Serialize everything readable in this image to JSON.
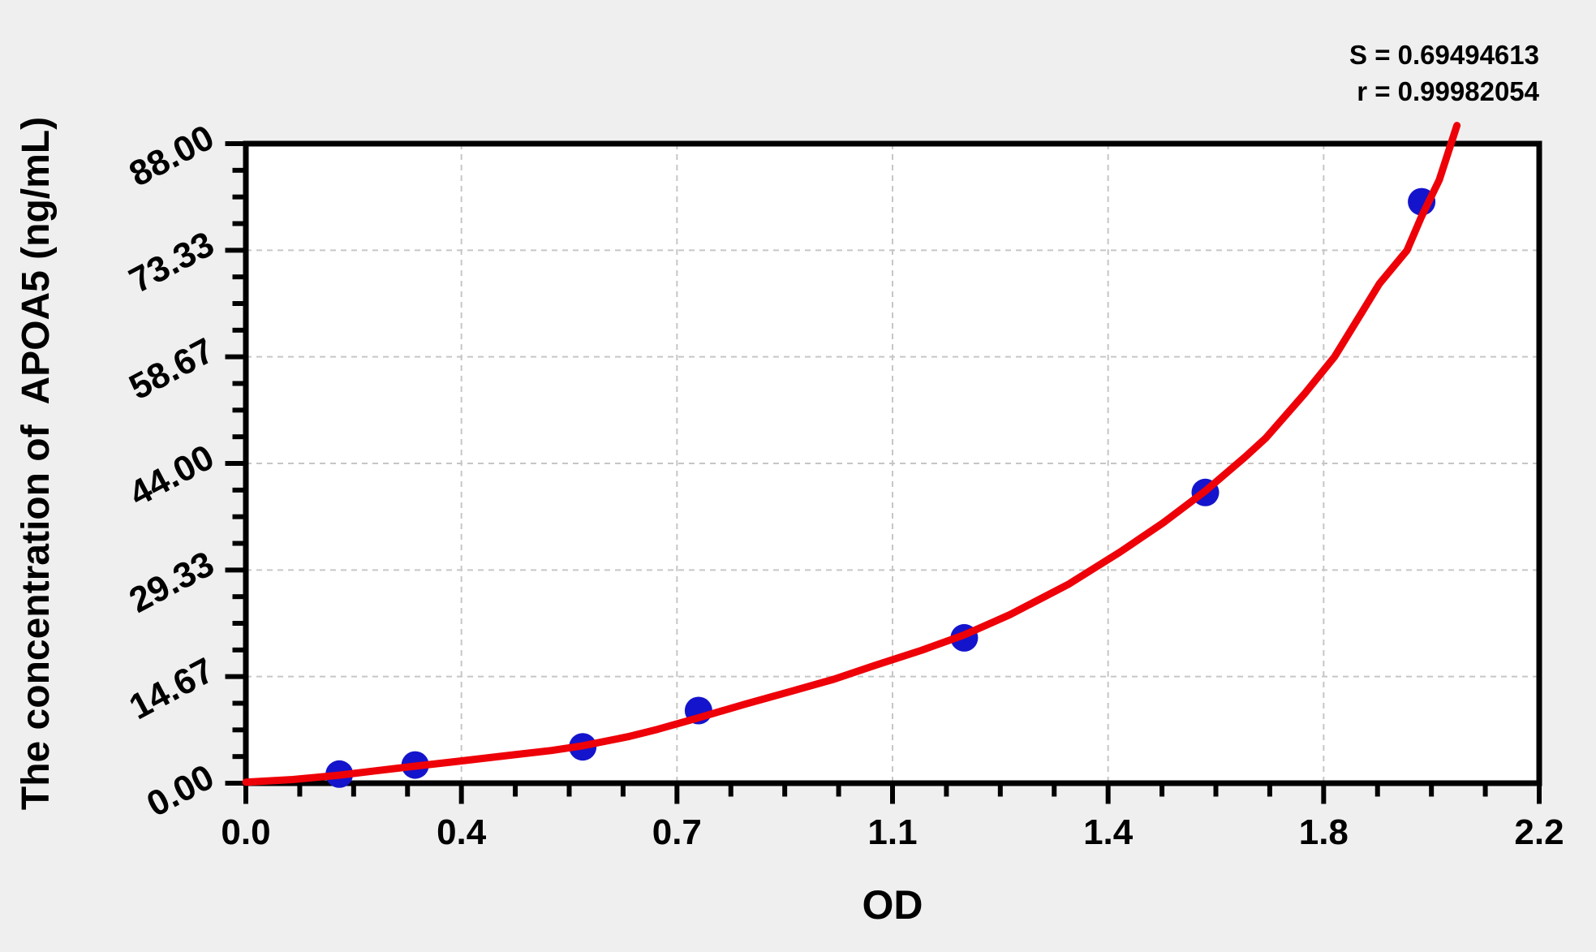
{
  "page": {
    "background": "#efefef",
    "plot_background": "#ffffff"
  },
  "chart_data": {
    "type": "scatter",
    "title": "",
    "xlabel": "OD",
    "ylabel": "The concentration of  APOA5 (ng/mL)",
    "xlim": [
      0.0,
      2.2
    ],
    "ylim": [
      0.0,
      88.0
    ],
    "x_ticks": [
      {
        "value": 0.0,
        "label": "0.0"
      },
      {
        "value": 0.36667,
        "label": "0.4"
      },
      {
        "value": 0.73333,
        "label": "0.7"
      },
      {
        "value": 1.1,
        "label": "1.1"
      },
      {
        "value": 1.46667,
        "label": "1.4"
      },
      {
        "value": 1.83333,
        "label": "1.8"
      },
      {
        "value": 2.2,
        "label": "2.2"
      }
    ],
    "y_ticks": [
      {
        "value": 0.0,
        "label": "0.00"
      },
      {
        "value": 14.6667,
        "label": "14.67"
      },
      {
        "value": 29.3333,
        "label": "29.33"
      },
      {
        "value": 44.0,
        "label": "44.00"
      },
      {
        "value": 58.6667,
        "label": "58.67"
      },
      {
        "value": 73.3333,
        "label": "73.33"
      },
      {
        "value": 88.0,
        "label": "88.00"
      }
    ],
    "minor_ticks_per_interval": 3,
    "grid": {
      "show": true,
      "style": "dashed",
      "color": "#c6c6c6",
      "at": "major-ticks"
    },
    "legend": "none",
    "stats": {
      "S": "0.69494613",
      "r": "0.99982054",
      "s_label": "S = 0.69494613",
      "r_label": "r = 0.99982054"
    },
    "series": [
      {
        "name": "standard-points",
        "type": "scatter",
        "color": "#1414cc",
        "marker_radius": 17,
        "points": [
          {
            "od": 0.159,
            "concentration": 1.25
          },
          {
            "od": 0.288,
            "concentration": 2.5
          },
          {
            "od": 0.573,
            "concentration": 5.0
          },
          {
            "od": 0.77,
            "concentration": 10.0
          },
          {
            "od": 1.222,
            "concentration": 20.0
          },
          {
            "od": 1.632,
            "concentration": 40.0
          },
          {
            "od": 2.0,
            "concentration": 80.0
          }
        ]
      },
      {
        "name": "fitted-curve",
        "type": "line",
        "color": "#ee0008",
        "points": [
          [
            0.0,
            0.15
          ],
          [
            0.08,
            0.5
          ],
          [
            0.159,
            1.1
          ],
          [
            0.22,
            1.7
          ],
          [
            0.288,
            2.35
          ],
          [
            0.36,
            3.0
          ],
          [
            0.45,
            3.85
          ],
          [
            0.52,
            4.5
          ],
          [
            0.573,
            5.15
          ],
          [
            0.65,
            6.4
          ],
          [
            0.7,
            7.4
          ],
          [
            0.77,
            9.0
          ],
          [
            0.85,
            10.9
          ],
          [
            0.93,
            12.7
          ],
          [
            1.0,
            14.3
          ],
          [
            1.07,
            16.2
          ],
          [
            1.15,
            18.3
          ],
          [
            1.222,
            20.4
          ],
          [
            1.3,
            23.2
          ],
          [
            1.4,
            27.4
          ],
          [
            1.487,
            31.8
          ],
          [
            1.56,
            35.8
          ],
          [
            1.632,
            40.2
          ],
          [
            1.7,
            44.9
          ],
          [
            1.735,
            47.5
          ],
          [
            1.8,
            53.5
          ],
          [
            1.852,
            58.7
          ],
          [
            1.9,
            65.0
          ],
          [
            1.928,
            68.7
          ],
          [
            1.975,
            73.3
          ],
          [
            2.0,
            78.0
          ],
          [
            2.03,
            83.0
          ],
          [
            2.06,
            90.5
          ]
        ]
      }
    ]
  }
}
